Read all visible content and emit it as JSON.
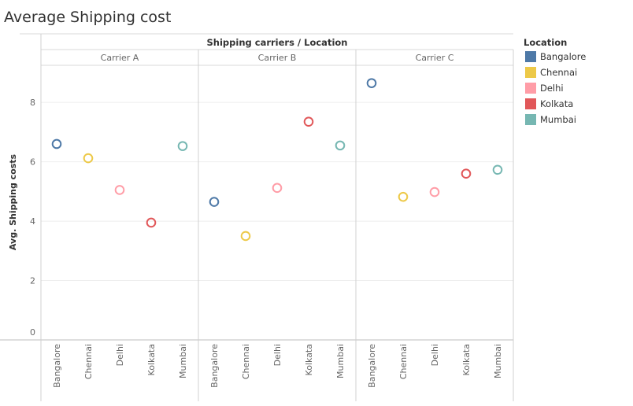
{
  "chart_data": {
    "type": "scatter",
    "title": "Average Shipping cost",
    "column_header": "Shipping carriers  /  Location",
    "ylabel": "Avg. Shipping costs",
    "ylim": [
      0,
      9.25
    ],
    "yticks": [
      0,
      2,
      4,
      6,
      8
    ],
    "grid": true,
    "panels": [
      "Carrier A",
      "Carrier B",
      "Carrier C"
    ],
    "categories": [
      "Bangalore",
      "Chennai",
      "Delhi",
      "Kolkata",
      "Mumbai"
    ],
    "series": [
      {
        "carrier": "Carrier A",
        "values": [
          6.6,
          6.12,
          5.05,
          3.95,
          6.53
        ]
      },
      {
        "carrier": "Carrier B",
        "values": [
          4.65,
          3.5,
          5.12,
          7.35,
          6.55
        ]
      },
      {
        "carrier": "Carrier C",
        "values": [
          8.65,
          4.82,
          4.98,
          5.6,
          5.73
        ]
      }
    ],
    "legend": {
      "title": "Location",
      "placement": "right",
      "items": [
        {
          "label": "Bangalore",
          "color": "#4e79a7"
        },
        {
          "label": "Chennai",
          "color": "#edc948"
        },
        {
          "label": "Delhi",
          "color": "#ff9da7"
        },
        {
          "label": "Kolkata",
          "color": "#e15759"
        },
        {
          "label": "Mumbai",
          "color": "#76b7b2"
        }
      ]
    }
  }
}
